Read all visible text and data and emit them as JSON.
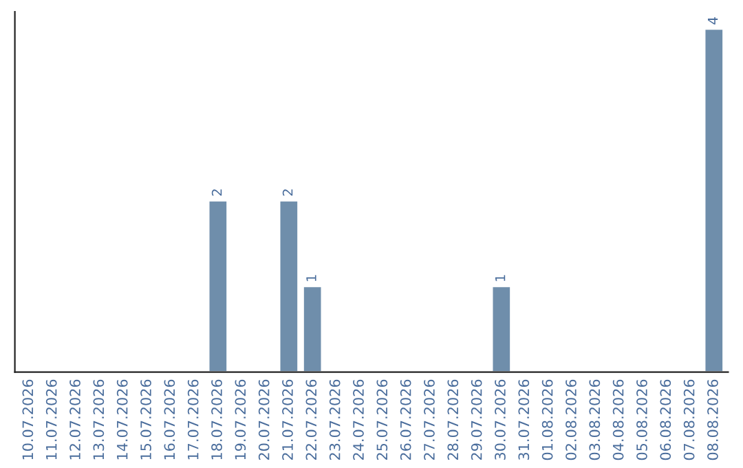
{
  "chart_data": {
    "type": "bar",
    "categories": [
      "10.07.2026",
      "11.07.2026",
      "12.07.2026",
      "13.07.2026",
      "14.07.2026",
      "15.07.2026",
      "16.07.2026",
      "17.07.2026",
      "18.07.2026",
      "19.07.2026",
      "20.07.2026",
      "21.07.2026",
      "22.07.2026",
      "23.07.2026",
      "24.07.2026",
      "25.07.2026",
      "26.07.2026",
      "27.07.2026",
      "28.07.2026",
      "29.07.2026",
      "30.07.2026",
      "31.07.2026",
      "01.08.2026",
      "02.08.2026",
      "03.08.2026",
      "04.08.2026",
      "05.08.2026",
      "06.08.2026",
      "07.08.2026",
      "08.08.2026"
    ],
    "values": [
      0,
      0,
      0,
      0,
      0,
      0,
      0,
      0,
      2,
      0,
      0,
      2,
      1,
      0,
      0,
      0,
      0,
      0,
      0,
      0,
      1,
      0,
      0,
      0,
      0,
      0,
      0,
      0,
      0,
      4
    ],
    "value_labels": [
      null,
      null,
      null,
      null,
      null,
      null,
      null,
      null,
      "2",
      null,
      null,
      "2",
      "1",
      null,
      null,
      null,
      null,
      null,
      null,
      null,
      "1",
      null,
      null,
      null,
      null,
      null,
      null,
      null,
      null,
      "4"
    ],
    "color": "#6f8eab",
    "ylim": [
      0,
      4.2
    ],
    "tick_labels": "x",
    "grid": false,
    "legend": false
  }
}
